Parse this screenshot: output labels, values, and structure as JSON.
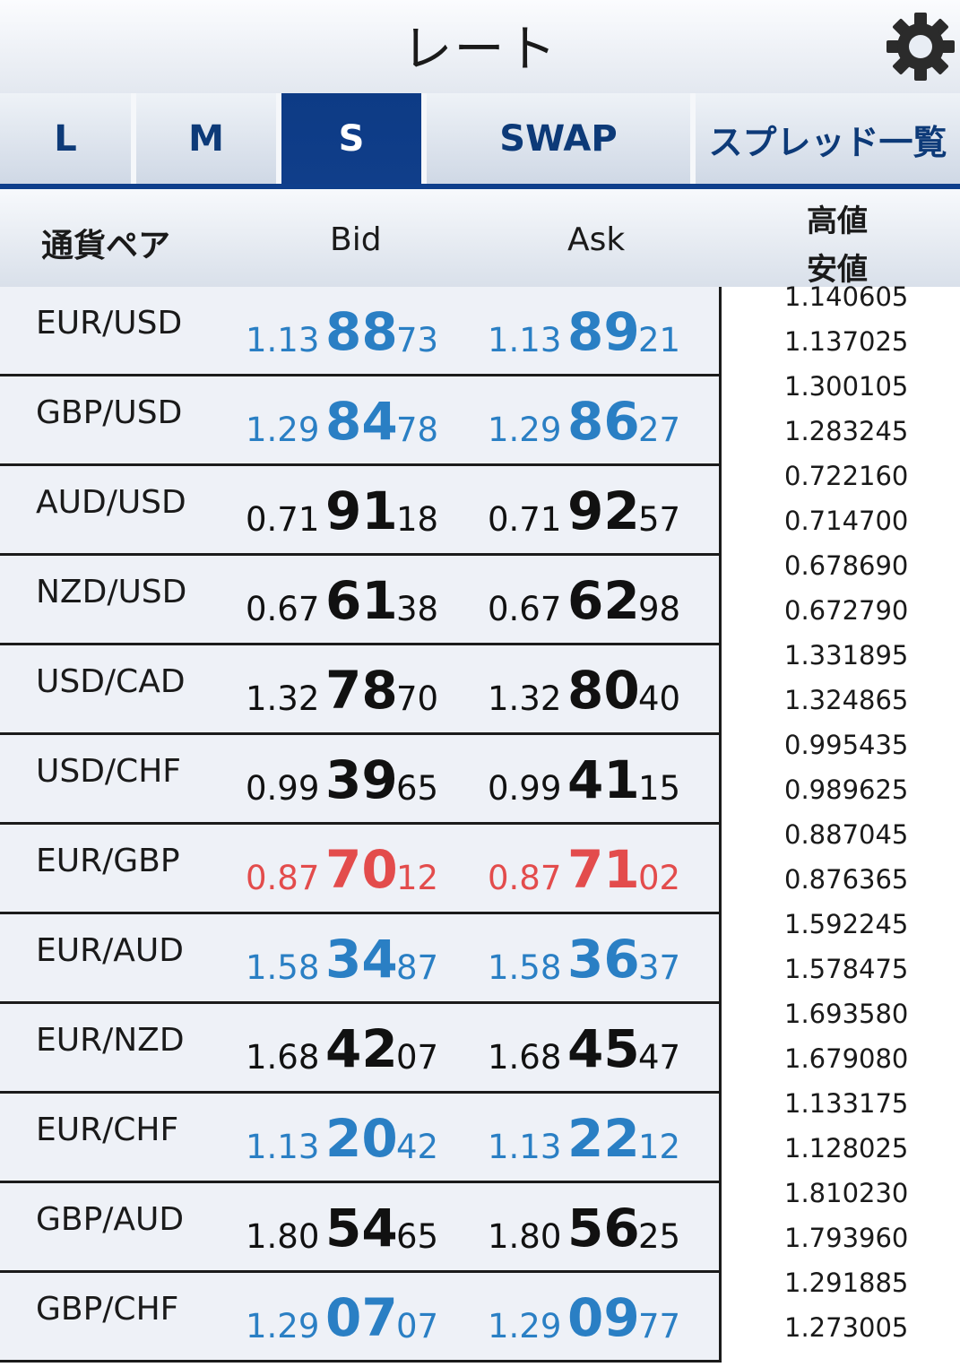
{
  "header": {
    "title": "レート",
    "settings_icon": "gear-icon"
  },
  "tabs": [
    {
      "label": "L",
      "active": false
    },
    {
      "label": "M",
      "active": false
    },
    {
      "label": "S",
      "active": true
    },
    {
      "label": "SWAP",
      "active": false
    },
    {
      "label": "スプレッド一覧",
      "active": false
    }
  ],
  "columns": {
    "pair": "通貨ペア",
    "bid": "Bid",
    "ask": "Ask",
    "high": "高値",
    "low": "安値"
  },
  "colors": {
    "up": "#2a7fc4",
    "flat": "#111111",
    "down": "#e34c4c",
    "accent": "#0f3f8c"
  },
  "rows": [
    {
      "pair": "EUR/USD",
      "trend": "up",
      "bid": {
        "pre": "1.13",
        "big": "88",
        "suf": "73"
      },
      "ask": {
        "pre": "1.13",
        "big": "89",
        "suf": "21"
      },
      "high": "1.140605",
      "low": "1.137025"
    },
    {
      "pair": "GBP/USD",
      "trend": "up",
      "bid": {
        "pre": "1.29",
        "big": "84",
        "suf": "78"
      },
      "ask": {
        "pre": "1.29",
        "big": "86",
        "suf": "27"
      },
      "high": "1.300105",
      "low": "1.283245"
    },
    {
      "pair": "AUD/USD",
      "trend": "flat",
      "bid": {
        "pre": "0.71",
        "big": "91",
        "suf": "18"
      },
      "ask": {
        "pre": "0.71",
        "big": "92",
        "suf": "57"
      },
      "high": "0.722160",
      "low": "0.714700"
    },
    {
      "pair": "NZD/USD",
      "trend": "flat",
      "bid": {
        "pre": "0.67",
        "big": "61",
        "suf": "38"
      },
      "ask": {
        "pre": "0.67",
        "big": "62",
        "suf": "98"
      },
      "high": "0.678690",
      "low": "0.672790"
    },
    {
      "pair": "USD/CAD",
      "trend": "flat",
      "bid": {
        "pre": "1.32",
        "big": "78",
        "suf": "70"
      },
      "ask": {
        "pre": "1.32",
        "big": "80",
        "suf": "40"
      },
      "high": "1.331895",
      "low": "1.324865"
    },
    {
      "pair": "USD/CHF",
      "trend": "flat",
      "bid": {
        "pre": "0.99",
        "big": "39",
        "suf": "65"
      },
      "ask": {
        "pre": "0.99",
        "big": "41",
        "suf": "15"
      },
      "high": "0.995435",
      "low": "0.989625"
    },
    {
      "pair": "EUR/GBP",
      "trend": "down",
      "bid": {
        "pre": "0.87",
        "big": "70",
        "suf": "12"
      },
      "ask": {
        "pre": "0.87",
        "big": "71",
        "suf": "02"
      },
      "high": "0.887045",
      "low": "0.876365"
    },
    {
      "pair": "EUR/AUD",
      "trend": "up",
      "bid": {
        "pre": "1.58",
        "big": "34",
        "suf": "87"
      },
      "ask": {
        "pre": "1.58",
        "big": "36",
        "suf": "37"
      },
      "high": "1.592245",
      "low": "1.578475"
    },
    {
      "pair": "EUR/NZD",
      "trend": "flat",
      "bid": {
        "pre": "1.68",
        "big": "42",
        "suf": "07"
      },
      "ask": {
        "pre": "1.68",
        "big": "45",
        "suf": "47"
      },
      "high": "1.693580",
      "low": "1.679080"
    },
    {
      "pair": "EUR/CHF",
      "trend": "up",
      "bid": {
        "pre": "1.13",
        "big": "20",
        "suf": "42"
      },
      "ask": {
        "pre": "1.13",
        "big": "22",
        "suf": "12"
      },
      "high": "1.133175",
      "low": "1.128025"
    },
    {
      "pair": "GBP/AUD",
      "trend": "flat",
      "bid": {
        "pre": "1.80",
        "big": "54",
        "suf": "65"
      },
      "ask": {
        "pre": "1.80",
        "big": "56",
        "suf": "25"
      },
      "high": "1.810230",
      "low": "1.793960"
    },
    {
      "pair": "GBP/CHF",
      "trend": "up",
      "bid": {
        "pre": "1.29",
        "big": "07",
        "suf": "07"
      },
      "ask": {
        "pre": "1.29",
        "big": "09",
        "suf": "77"
      },
      "high": "1.291885",
      "low": "1.273005"
    }
  ]
}
